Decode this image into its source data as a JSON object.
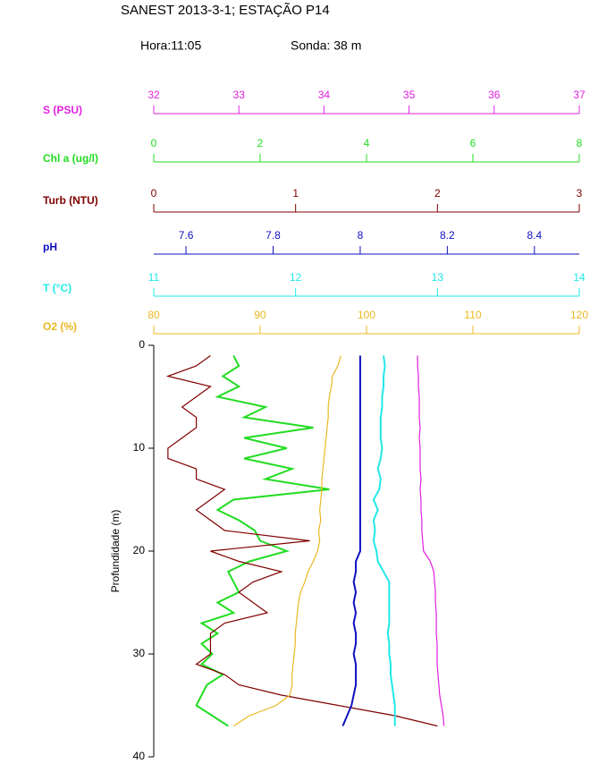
{
  "chart_data": {
    "type": "line",
    "title": "SANEST 2013-3-1; ESTAÇÃO P14",
    "annotations": [
      "Hora:11:05",
      "Sonda: 38 m"
    ],
    "ylabel": "Profundidade (m)",
    "ylim": [
      0,
      40
    ],
    "yticks": [
      0,
      10,
      20,
      30,
      40
    ],
    "depth": [
      1,
      2,
      3,
      4,
      5,
      6,
      7,
      8,
      9,
      10,
      11,
      12,
      13,
      14,
      15,
      16,
      17,
      18,
      19,
      20,
      21,
      22,
      23,
      24,
      25,
      26,
      27,
      28,
      29,
      30,
      31,
      32,
      33,
      34,
      35,
      36,
      37
    ],
    "series": [
      {
        "name": "S (PSU)",
        "color": "#e020e0",
        "xlim": [
          32,
          37
        ],
        "xticks": [
          32,
          33,
          34,
          35,
          36,
          37
        ],
        "values": [
          35.1,
          35.1,
          35.11,
          35.11,
          35.12,
          35.12,
          35.12,
          35.13,
          35.12,
          35.13,
          35.13,
          35.13,
          35.14,
          35.13,
          35.14,
          35.14,
          35.15,
          35.15,
          35.16,
          35.17,
          35.25,
          35.29,
          35.3,
          35.31,
          35.31,
          35.32,
          35.32,
          35.32,
          35.33,
          35.33,
          35.33,
          35.34,
          35.35,
          35.36,
          35.38,
          35.4,
          35.41
        ]
      },
      {
        "name": "Chl a (ug/l)",
        "color": "#22dd22",
        "xlim": [
          0,
          8
        ],
        "xticks": [
          0,
          2,
          4,
          6,
          8
        ],
        "values": [
          1.5,
          1.6,
          1.3,
          1.6,
          1.2,
          2.1,
          1.7,
          3.0,
          1.7,
          2.5,
          1.7,
          2.6,
          2.1,
          3.3,
          1.5,
          1.2,
          1.6,
          1.9,
          2.0,
          2.5,
          1.8,
          1.4,
          1.5,
          1.6,
          1.2,
          1.5,
          0.9,
          1.2,
          0.9,
          1.1,
          0.9,
          1.3,
          1.0,
          0.9,
          0.8,
          1.1,
          1.4
        ]
      },
      {
        "name": "Turb (NTU)",
        "color": "#800000",
        "xlim": [
          0,
          3
        ],
        "xticks": [
          0,
          1,
          2,
          3
        ],
        "values": [
          0.4,
          0.3,
          0.1,
          0.4,
          0.3,
          0.2,
          0.3,
          0.3,
          0.2,
          0.1,
          0.1,
          0.3,
          0.3,
          0.5,
          0.4,
          0.3,
          0.4,
          0.5,
          1.1,
          0.4,
          0.6,
          0.9,
          0.7,
          0.6,
          0.7,
          0.8,
          0.5,
          0.4,
          0.4,
          0.4,
          0.3,
          0.5,
          0.6,
          0.9,
          1.3,
          1.7,
          2.0
        ]
      },
      {
        "name": "pH",
        "color": "#1010c0",
        "xlim": [
          7.526,
          8.503
        ],
        "xticks": [
          7.6,
          7.8,
          8,
          8.2,
          8.4
        ],
        "values": [
          8.0,
          8.0,
          8.0,
          8.0,
          8.0,
          8.0,
          8.0,
          8.0,
          8.0,
          8.0,
          8.0,
          8.0,
          8.0,
          8.0,
          8.0,
          8.0,
          8.0,
          8.0,
          8.0,
          8.0,
          7.99,
          7.99,
          7.985,
          7.99,
          7.985,
          7.99,
          7.985,
          7.99,
          7.99,
          7.985,
          7.99,
          7.99,
          7.99,
          7.985,
          7.98,
          7.97,
          7.96
        ]
      },
      {
        "name": "T (°C)",
        "color": "#22e8e8",
        "xlim": [
          11,
          14
        ],
        "xticks": [
          11,
          12,
          13,
          14
        ],
        "values": [
          12.62,
          12.63,
          12.62,
          12.62,
          12.61,
          12.61,
          12.6,
          12.6,
          12.6,
          12.61,
          12.6,
          12.58,
          12.6,
          12.59,
          12.55,
          12.58,
          12.55,
          12.56,
          12.55,
          12.57,
          12.58,
          12.62,
          12.66,
          12.66,
          12.66,
          12.66,
          12.66,
          12.65,
          12.66,
          12.66,
          12.67,
          12.67,
          12.68,
          12.69,
          12.7,
          12.7,
          12.7
        ]
      },
      {
        "name": "O2 (%)",
        "color": "#e8b820",
        "xlim": [
          80,
          120
        ],
        "xticks": [
          80,
          90,
          100,
          110,
          120
        ],
        "values": [
          97.6,
          97.3,
          96.8,
          96.7,
          96.5,
          96.4,
          96.4,
          96.3,
          96.2,
          96.1,
          96.0,
          95.9,
          95.8,
          95.8,
          95.7,
          95.6,
          95.7,
          95.5,
          95.6,
          95.4,
          95.0,
          94.5,
          94.2,
          93.8,
          93.6,
          93.5,
          93.4,
          93.3,
          93.3,
          93.2,
          93.1,
          93.0,
          93.0,
          92.8,
          91.5,
          89.0,
          87.5
        ]
      }
    ]
  }
}
